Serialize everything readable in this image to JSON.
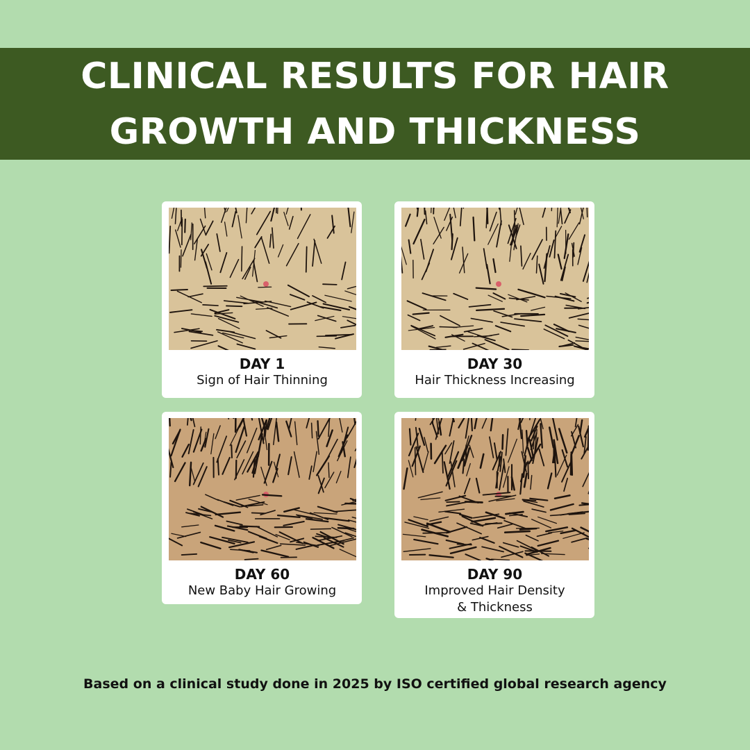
{
  "banner": {
    "title_line1": "CLINICAL RESULTS FOR HAIR",
    "title_line2": "GROWTH AND THICKNESS"
  },
  "cards": [
    {
      "day": "DAY 1",
      "desc": "Sign of Hair Thinning",
      "density": 0.55
    },
    {
      "day": "DAY 30",
      "desc": "Hair Thickness Increasing",
      "density": 0.7
    },
    {
      "day": "DAY 60",
      "desc": "New Baby Hair Growing",
      "density": 0.82
    },
    {
      "day": "DAY 90",
      "desc": "Improved Hair Density",
      "desc2": "& Thickness",
      "density": 0.95
    }
  ],
  "footer": {
    "text": "Based on a clinical study done in 2025 by ISO certified global research agency"
  },
  "colors": {
    "background": "#b2dcae",
    "banner": "#3d5a22",
    "scalp": "#d9c39a",
    "hair": "#1e140e"
  }
}
